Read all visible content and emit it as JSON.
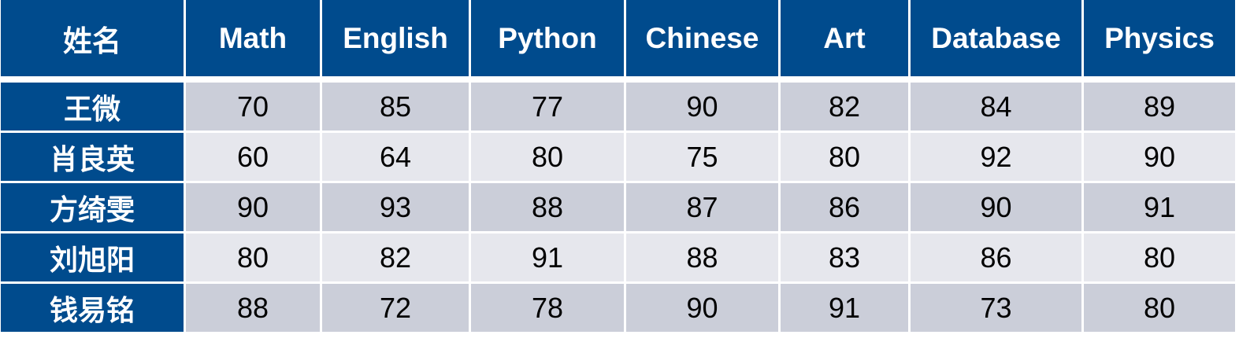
{
  "table": {
    "header": [
      "姓名",
      "Math",
      "English",
      "Python",
      "Chinese",
      "Art",
      "Database",
      "Physics"
    ],
    "rows": [
      [
        "王微",
        70,
        85,
        77,
        90,
        82,
        84,
        89
      ],
      [
        "肖良英",
        60,
        64,
        80,
        75,
        80,
        92,
        90
      ],
      [
        "方绮雯",
        90,
        93,
        88,
        87,
        86,
        90,
        91
      ],
      [
        "刘旭阳",
        80,
        82,
        91,
        88,
        83,
        86,
        80
      ],
      [
        "钱易铭",
        88,
        72,
        78,
        90,
        91,
        73,
        80
      ]
    ]
  }
}
